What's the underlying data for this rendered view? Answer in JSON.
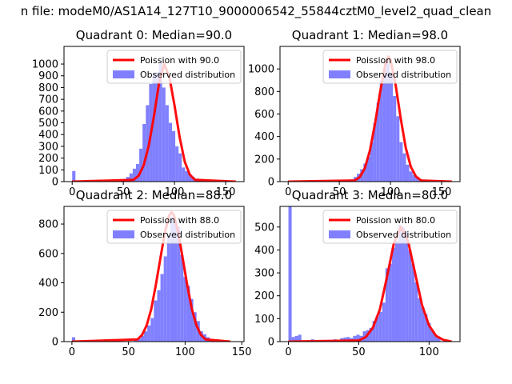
{
  "figure": {
    "suptitle": "n file: modeM0/AS1A14_127T10_9000006542_55844cztM0_level2_quad_clean"
  },
  "colors": {
    "poisson": "#ff0000",
    "hist": "#8080ff",
    "axis": "#000000"
  },
  "chart_data": [
    {
      "type": "bar",
      "title": "Quadrant 0: Median=90.0",
      "xlim": [
        -8,
        168
      ],
      "ylim": [
        0,
        1150
      ],
      "xticks": [
        0,
        50,
        100,
        150
      ],
      "yticks": [
        0,
        100,
        200,
        300,
        400,
        500,
        600,
        700,
        800,
        900,
        1000
      ],
      "median": 90,
      "legend": {
        "line_label": "Poission with 90.0",
        "bar_label": "Observed distribution",
        "location": "upper right"
      },
      "bin_width": 3.2,
      "hist_x": [
        0,
        40,
        43.2,
        46.4,
        49.6,
        52.8,
        56,
        59.2,
        62.4,
        65.6,
        68.8,
        72,
        75.2,
        78.4,
        81.6,
        84.8,
        88,
        91.2,
        94.4,
        97.6,
        100.8,
        104,
        107.2,
        110.4,
        113.6,
        116.8,
        120,
        123.2,
        126.4,
        129.6
      ],
      "hist_y": [
        90,
        5,
        8,
        12,
        20,
        40,
        70,
        110,
        150,
        280,
        490,
        650,
        830,
        920,
        930,
        1010,
        800,
        650,
        500,
        430,
        300,
        240,
        120,
        90,
        60,
        40,
        25,
        10,
        20,
        5
      ],
      "poisson_x": [
        0,
        60,
        65,
        70,
        75,
        80,
        85,
        90,
        95,
        100,
        105,
        110,
        115,
        120,
        160
      ],
      "poisson_y": [
        0,
        15,
        50,
        140,
        310,
        560,
        840,
        1000,
        890,
        650,
        380,
        170,
        60,
        15,
        0
      ]
    },
    {
      "type": "bar",
      "title": "Quadrant 1: Median=98.0",
      "xlim": [
        -8,
        168
      ],
      "ylim": [
        0,
        1200
      ],
      "xticks": [
        0,
        50,
        100,
        150
      ],
      "yticks": [
        0,
        200,
        400,
        600,
        800,
        1000
      ],
      "median": 98,
      "legend": {
        "line_label": "Poission with 98.0",
        "bar_label": "Observed distribution",
        "location": "upper right"
      },
      "bin_width": 3.2,
      "hist_x": [
        57.6,
        60.8,
        64,
        67.2,
        70.4,
        73.6,
        76.8,
        80,
        83.2,
        86.4,
        89.6,
        92.8,
        96,
        99.2,
        102.4,
        105.6,
        108.8,
        112,
        115.2,
        118.4,
        121.6,
        124.8,
        128,
        131.2
      ],
      "hist_y": [
        10,
        20,
        40,
        70,
        110,
        160,
        220,
        350,
        520,
        700,
        900,
        1000,
        1050,
        960,
        760,
        580,
        350,
        250,
        150,
        90,
        60,
        40,
        20,
        10
      ],
      "poisson_x": [
        0,
        65,
        70,
        75,
        80,
        85,
        90,
        95,
        98,
        100,
        105,
        110,
        115,
        120,
        125,
        130,
        160
      ],
      "poisson_y": [
        0,
        10,
        40,
        120,
        280,
        520,
        800,
        1040,
        1110,
        1080,
        860,
        560,
        300,
        130,
        45,
        10,
        0
      ]
    },
    {
      "type": "bar",
      "title": "Quadrant 2: Median=88.0",
      "xlim": [
        -7,
        152
      ],
      "ylim": [
        0,
        920
      ],
      "xticks": [
        0,
        50,
        100,
        150
      ],
      "yticks": [
        0,
        200,
        400,
        600,
        800
      ],
      "median": 88,
      "legend": {
        "line_label": "Poission with 88.0",
        "bar_label": "Observed distribution",
        "location": "upper right"
      },
      "bin_width": 2.9,
      "hist_x": [
        0,
        55,
        57.9,
        60.8,
        63.7,
        66.6,
        69.5,
        72.4,
        75.3,
        78.2,
        81.1,
        84,
        86.9,
        89.8,
        92.7,
        95.6,
        98.5,
        101.4,
        104.3,
        107.2,
        110.1,
        113,
        115.9,
        118.8,
        121.7
      ],
      "hist_y": [
        30,
        10,
        20,
        40,
        70,
        110,
        160,
        280,
        350,
        460,
        580,
        720,
        850,
        800,
        780,
        590,
        440,
        380,
        290,
        200,
        140,
        70,
        50,
        30,
        10
      ],
      "poisson_x": [
        0,
        58,
        62,
        66,
        70,
        74,
        78,
        82,
        86,
        88,
        90,
        94,
        98,
        102,
        106,
        110,
        114,
        118,
        140
      ],
      "poisson_y": [
        0,
        15,
        45,
        110,
        220,
        380,
        560,
        740,
        860,
        880,
        860,
        740,
        560,
        380,
        220,
        110,
        45,
        15,
        0
      ]
    },
    {
      "type": "bar",
      "title": "Quadrant 3: Median=80.0",
      "xlim": [
        -6,
        122
      ],
      "ylim": [
        0,
        590
      ],
      "xticks": [
        0,
        50,
        100
      ],
      "yticks": [
        0,
        100,
        200,
        300,
        400,
        500
      ],
      "median": 80,
      "legend": {
        "line_label": "Poission with 80.0",
        "bar_label": "Observed distribution",
        "location": "upper right"
      },
      "bin_width": 2.3,
      "hist_x": [
        0,
        2.3,
        4.6,
        6.9,
        9.2,
        16,
        25,
        32,
        36.8,
        39.1,
        41.4,
        43.7,
        46,
        48.3,
        50.6,
        52.9,
        55.2,
        57.5,
        59.8,
        62.1,
        64.4,
        66.7,
        69,
        71.3,
        73.6,
        75.9,
        78.2,
        80.5,
        82.8,
        85.1,
        87.4,
        89.7,
        92,
        94.3,
        96.6,
        98.9,
        101.2,
        103.5,
        105.8
      ],
      "hist_y": [
        590,
        20,
        25,
        30,
        5,
        10,
        5,
        10,
        15,
        18,
        20,
        15,
        25,
        30,
        25,
        45,
        50,
        60,
        90,
        110,
        130,
        170,
        320,
        340,
        410,
        440,
        510,
        500,
        480,
        400,
        340,
        260,
        190,
        150,
        120,
        80,
        50,
        30,
        20
      ],
      "poisson_x": [
        0,
        50,
        55,
        60,
        65,
        70,
        75,
        80,
        85,
        90,
        95,
        100,
        105,
        110,
        116
      ],
      "poisson_y": [
        0,
        5,
        20,
        60,
        140,
        280,
        430,
        500,
        440,
        300,
        160,
        70,
        25,
        8,
        0
      ]
    }
  ]
}
